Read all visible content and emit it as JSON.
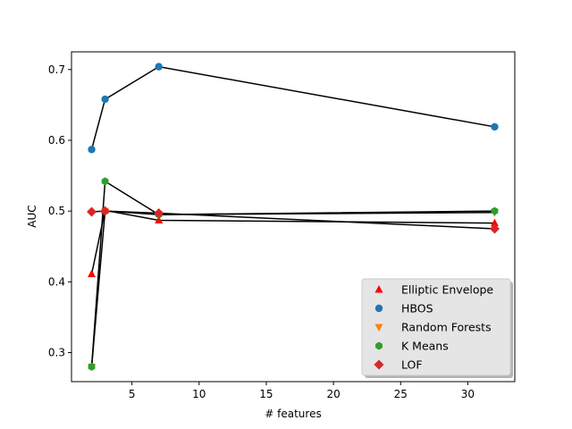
{
  "chart_data": {
    "type": "scatter",
    "title": "",
    "xlabel": "# features",
    "ylabel": "AUC",
    "xlim": [
      0.5,
      33.5
    ],
    "ylim": [
      0.259,
      0.725
    ],
    "xticks": [
      5,
      10,
      15,
      20,
      25,
      30
    ],
    "yticks": [
      0.3,
      0.4,
      0.5,
      0.6,
      0.7
    ],
    "xtick_labels": [
      "5",
      "10",
      "15",
      "20",
      "25",
      "30"
    ],
    "ytick_labels": [
      "0.3",
      "0.4",
      "0.5",
      "0.6",
      "0.7"
    ],
    "grid": false,
    "legend_position": "lower-right",
    "line_color": "#000000",
    "series": [
      {
        "name": "Elliptic Envelope",
        "marker": "triangle-up",
        "color": "#ff0000",
        "x": [
          2,
          3,
          7,
          32
        ],
        "y": [
          0.411,
          0.501,
          0.487,
          0.483
        ]
      },
      {
        "name": "HBOS",
        "marker": "circle",
        "color": "#1f77b4",
        "x": [
          2,
          3,
          7,
          32
        ],
        "y": [
          0.587,
          0.658,
          0.704,
          0.619
        ]
      },
      {
        "name": "Random Forests",
        "marker": "triangle-down",
        "color": "#ff7f0e",
        "x": [
          2,
          3,
          7,
          32
        ],
        "y": [
          0.28,
          0.5,
          0.495,
          0.498
        ]
      },
      {
        "name": "K Means",
        "marker": "hexagon",
        "color": "#2ca02c",
        "x": [
          2,
          3,
          7,
          32
        ],
        "y": [
          0.28,
          0.542,
          0.495,
          0.5
        ]
      },
      {
        "name": "LOF",
        "marker": "diamond",
        "color": "#d62728",
        "x": [
          2,
          3,
          7,
          32
        ],
        "y": [
          0.499,
          0.5,
          0.497,
          0.475
        ]
      }
    ]
  }
}
